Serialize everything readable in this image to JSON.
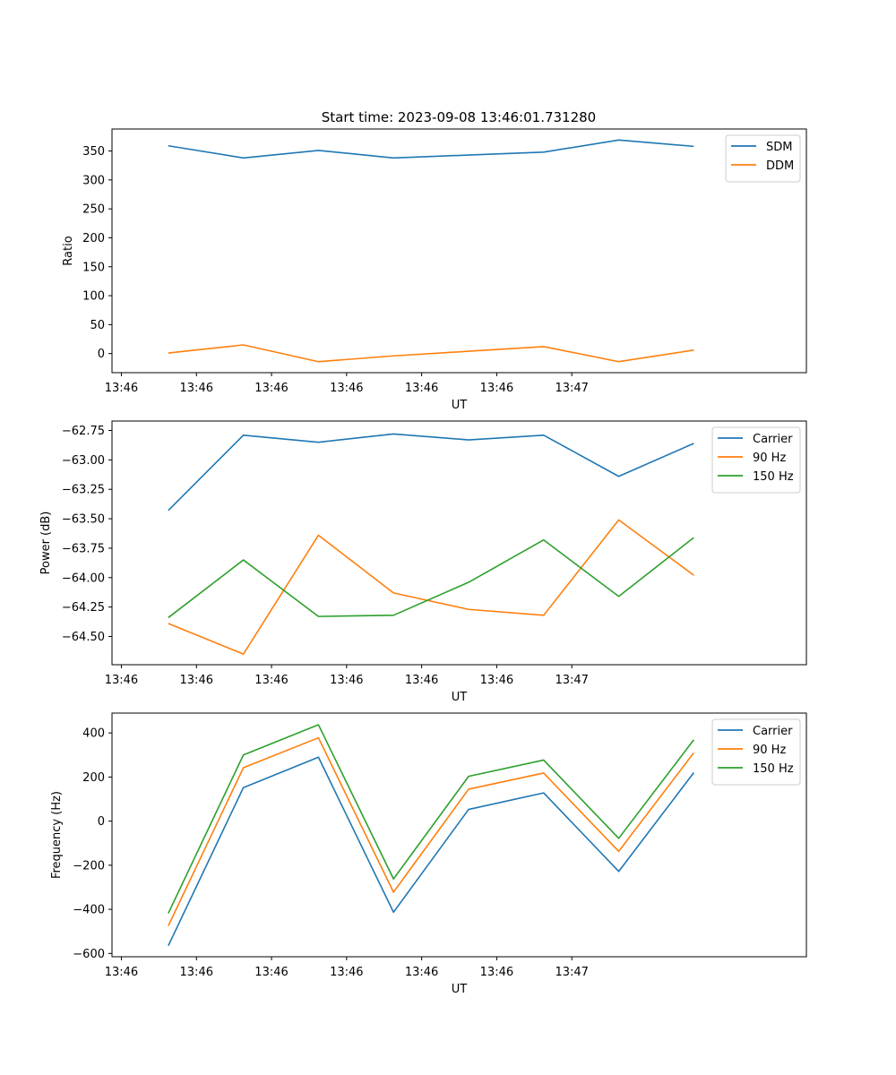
{
  "figure_title": "Start time: 2023-09-08 13:46:01.731280",
  "chart_data": [
    {
      "type": "line",
      "xlabel": "UT",
      "ylabel": "Ratio",
      "x_tick_labels": [
        "13:46",
        "13:46",
        "13:46",
        "13:46",
        "13:46",
        "13:46",
        "13:47"
      ],
      "y_ticks": [
        0,
        50,
        100,
        150,
        200,
        250,
        300,
        350
      ],
      "y_tick_labels": [
        "0",
        "50",
        "100",
        "150",
        "200",
        "250",
        "300",
        "350"
      ],
      "xlim": [
        0,
        37
      ],
      "ylim": [
        -33,
        388
      ],
      "x": [
        3,
        7,
        11,
        15,
        19,
        23,
        27,
        31
      ],
      "legend_position": "top-right",
      "series": [
        {
          "name": "SDM",
          "color": "#1f77b4",
          "values": [
            359,
            338,
            351,
            338,
            343,
            348,
            369,
            358
          ]
        },
        {
          "name": "DDM",
          "color": "#ff7f0e",
          "values": [
            1,
            15,
            -14,
            -4,
            4,
            12,
            -14,
            6
          ]
        }
      ]
    },
    {
      "type": "line",
      "xlabel": "UT",
      "ylabel": "Power (dB)",
      "x_tick_labels": [
        "13:46",
        "13:46",
        "13:46",
        "13:46",
        "13:46",
        "13:46",
        "13:47"
      ],
      "y_ticks": [
        -64.5,
        -64.25,
        -64.0,
        -63.75,
        -63.5,
        -63.25,
        -63.0,
        -62.75
      ],
      "y_tick_labels": [
        "−64.50",
        "−64.25",
        "−64.00",
        "−63.75",
        "−63.50",
        "−63.25",
        "−63.00",
        "−62.75"
      ],
      "xlim": [
        0,
        37
      ],
      "ylim": [
        -64.74,
        -62.67
      ],
      "x": [
        3,
        7,
        11,
        15,
        19,
        23,
        27,
        31
      ],
      "legend_position": "top-right",
      "series": [
        {
          "name": "Carrier",
          "color": "#1f77b4",
          "values": [
            -63.43,
            -62.79,
            -62.85,
            -62.78,
            -62.83,
            -62.79,
            -63.14,
            -62.86
          ]
        },
        {
          "name": "90 Hz",
          "color": "#ff7f0e",
          "values": [
            -64.39,
            -64.65,
            -63.64,
            -64.13,
            -64.27,
            -64.32,
            -63.51,
            -63.98
          ]
        },
        {
          "name": "150 Hz",
          "color": "#2ca02c",
          "values": [
            -64.34,
            -63.85,
            -64.33,
            -64.32,
            -64.04,
            -63.68,
            -64.16,
            -63.66
          ]
        }
      ]
    },
    {
      "type": "line",
      "xlabel": "UT",
      "ylabel": "Frequency (Hz)",
      "x_tick_labels": [
        "13:46",
        "13:46",
        "13:46",
        "13:46",
        "13:46",
        "13:46",
        "13:47"
      ],
      "y_ticks": [
        -600,
        -400,
        -200,
        0,
        200,
        400
      ],
      "y_tick_labels": [
        "−600",
        "−400",
        "−200",
        "0",
        "200",
        "400"
      ],
      "xlim": [
        0,
        37
      ],
      "ylim": [
        -615,
        490
      ],
      "x": [
        3,
        7,
        11,
        15,
        19,
        23,
        27,
        31
      ],
      "legend_position": "top-right",
      "series": [
        {
          "name": "Carrier",
          "color": "#1f77b4",
          "values": [
            -565,
            152,
            290,
            -413,
            53,
            128,
            -228,
            220
          ]
        },
        {
          "name": "90 Hz",
          "color": "#ff7f0e",
          "values": [
            -475,
            242,
            378,
            -322,
            145,
            218,
            -137,
            310
          ]
        },
        {
          "name": "150 Hz",
          "color": "#2ca02c",
          "values": [
            -418,
            300,
            437,
            -262,
            203,
            277,
            -78,
            369
          ]
        }
      ]
    }
  ]
}
